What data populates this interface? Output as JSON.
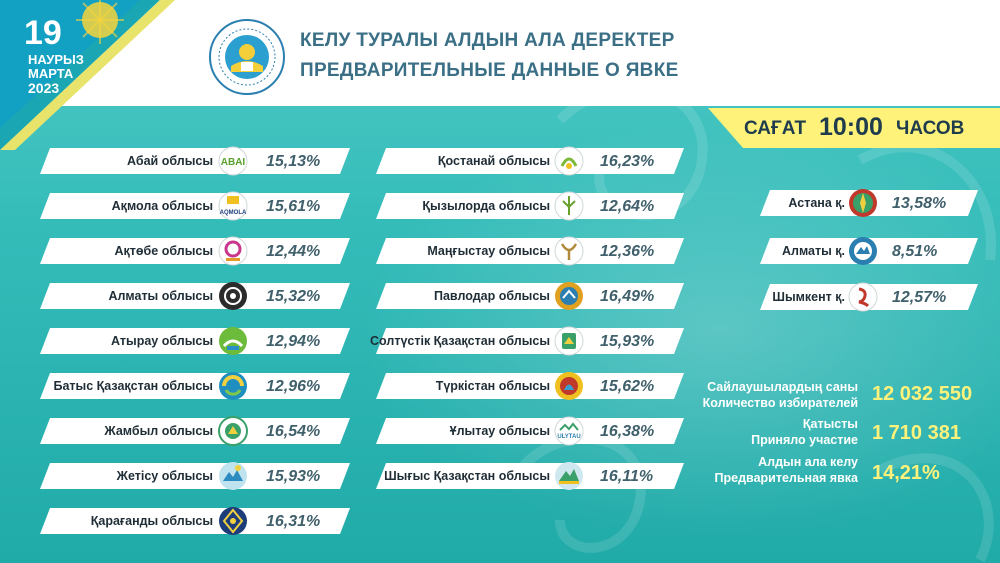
{
  "date": {
    "day": "19",
    "month_kz": "НАУРЫЗ",
    "month_ru": "МАРТА",
    "year": "2023"
  },
  "title": {
    "line1": "КЕЛУ ТУРАЛЫ АЛДЫН АЛА ДЕРЕКТЕР",
    "line2": "ПРЕДВАРИТЕЛЬНЫЕ ДАННЫЕ О ЯВКЕ"
  },
  "time": {
    "label_kz": "САҒАТ",
    "value": "10:00",
    "label_ru": "ЧАСОВ"
  },
  "column1": [
    {
      "name": "Абай облысы",
      "pct": "15,13%"
    },
    {
      "name": "Ақмола облысы",
      "pct": "15,61%"
    },
    {
      "name": "Ақтөбе облысы",
      "pct": "12,44%"
    },
    {
      "name": "Алматы облысы",
      "pct": "15,32%"
    },
    {
      "name": "Атырау облысы",
      "pct": "12,94%"
    },
    {
      "name": "Батыс Қазақстан облысы",
      "pct": "12,96%"
    },
    {
      "name": "Жамбыл облысы",
      "pct": "16,54%"
    },
    {
      "name": "Жетісу облысы",
      "pct": "15,93%"
    },
    {
      "name": "Қарағанды облысы",
      "pct": "16,31%"
    }
  ],
  "column2": [
    {
      "name": "Қостанай облысы",
      "pct": "16,23%"
    },
    {
      "name": "Қызылорда облысы",
      "pct": "12,64%"
    },
    {
      "name": "Маңғыстау облысы",
      "pct": "12,36%"
    },
    {
      "name": "Павлодар облысы",
      "pct": "16,49%"
    },
    {
      "name": "Солтүстік Қазақстан облысы",
      "pct": "15,93%"
    },
    {
      "name": "Түркістан облысы",
      "pct": "15,62%"
    },
    {
      "name": "Ұлытау облысы",
      "pct": "16,38%"
    },
    {
      "name": "Шығыс Қазақстан облысы",
      "pct": "16,11%"
    }
  ],
  "cities": [
    {
      "name": "Астана қ.",
      "pct": "13,58%"
    },
    {
      "name": "Алматы қ.",
      "pct": "8,51%"
    },
    {
      "name": "Шымкент қ.",
      "pct": "12,57%"
    }
  ],
  "stats": {
    "voters_kz": "Сайлаушылардың саны",
    "voters_ru": "Количество избирателей",
    "voters_value": "12 032 550",
    "participated_kz": "Қатысты",
    "participated_ru": "Приняло участие",
    "participated_value": "1 710 381",
    "turnout_kz": "Алдын ала келу",
    "turnout_ru": "Предварительная явка",
    "turnout_value": "14,21%"
  },
  "logo_labels": {
    "akmola": "AQMOLA",
    "ulytau": "ULYTAU"
  },
  "colors": {
    "background": "#2bb7b4",
    "accent_yellow": "#fff27a",
    "title_blue": "#3a6f86"
  }
}
